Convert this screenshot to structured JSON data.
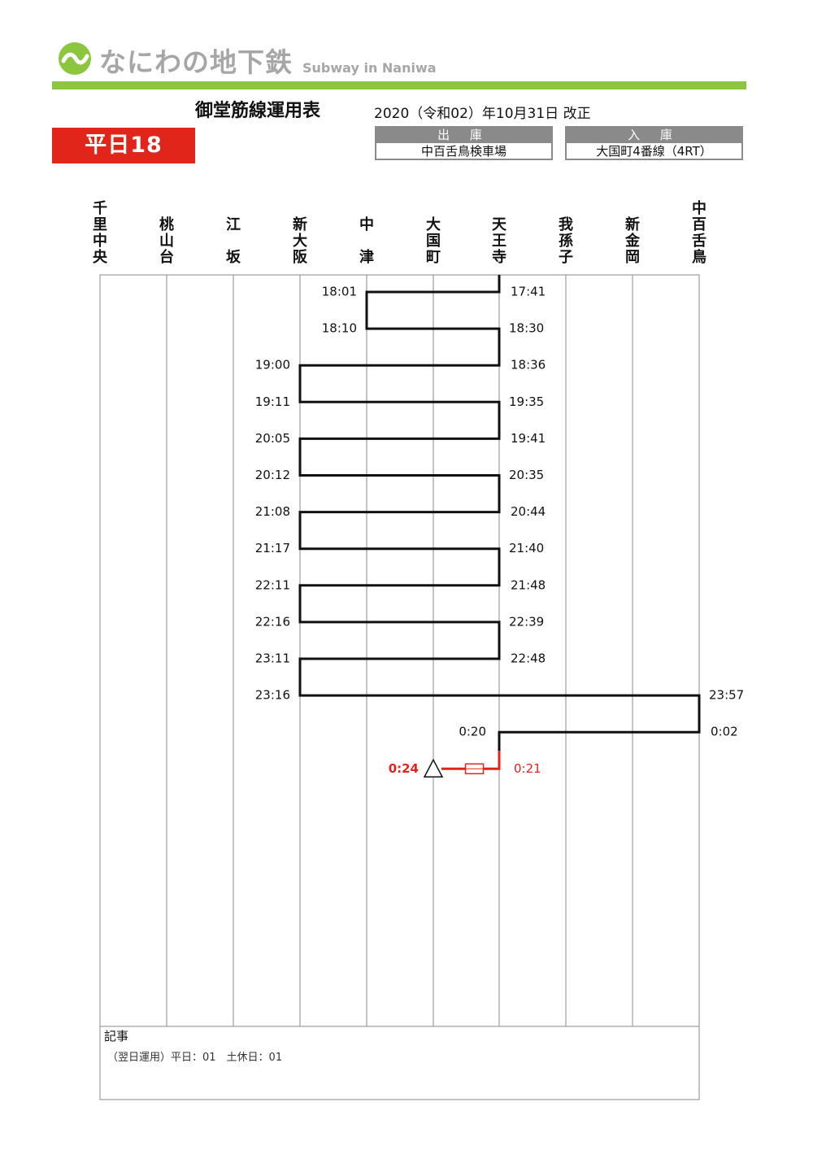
{
  "brand": {
    "name": "なにわの地下鉄",
    "subtitle": "Subway in Naniwa",
    "green": "#8cc63f",
    "logo_icon": "wave-circle-icon"
  },
  "document": {
    "title": "御堂筋線運用表",
    "revision": "2020（令和02）年10月31日 改正"
  },
  "service": {
    "label": "平日18",
    "color": "#e1251b"
  },
  "depot": {
    "out_label": "出 庫",
    "out_value": "中百舌鳥検車場",
    "in_label": "入 庫",
    "in_value": "大国町4番線（4RT）"
  },
  "stations": [
    "千里中央",
    "桃山台",
    "江坂",
    "新大阪",
    "中津",
    "大国町",
    "天王寺",
    "我孫子",
    "新金岡",
    "中百舌鳥"
  ],
  "schedule": {
    "start_station": 6,
    "legs": [
      {
        "from": 6,
        "to": 4,
        "dep": "17:41",
        "arr": "18:01"
      },
      {
        "from": 4,
        "to": 6,
        "dep": "18:10",
        "arr": "18:30"
      },
      {
        "from": 6,
        "to": 3,
        "dep": "18:36",
        "arr": "19:00"
      },
      {
        "from": 3,
        "to": 6,
        "dep": "19:11",
        "arr": "19:35"
      },
      {
        "from": 6,
        "to": 3,
        "dep": "19:41",
        "arr": "20:05"
      },
      {
        "from": 3,
        "to": 6,
        "dep": "20:12",
        "arr": "20:35"
      },
      {
        "from": 6,
        "to": 3,
        "dep": "20:44",
        "arr": "21:08"
      },
      {
        "from": 3,
        "to": 6,
        "dep": "21:17",
        "arr": "21:40"
      },
      {
        "from": 6,
        "to": 3,
        "dep": "21:48",
        "arr": "22:11"
      },
      {
        "from": 3,
        "to": 6,
        "dep": "22:16",
        "arr": "22:39"
      },
      {
        "from": 6,
        "to": 3,
        "dep": "22:48",
        "arr": "23:11"
      },
      {
        "from": 3,
        "to": 9,
        "dep": "23:16",
        "arr": "23:57"
      },
      {
        "from": 9,
        "to": 6,
        "dep": "0:02",
        "arr": "0:20"
      }
    ],
    "stable": {
      "from": 6,
      "to": 5,
      "dep": "0:21",
      "arr": "0:24",
      "color": "#e1251b",
      "end_icon": "triangle-stable-icon",
      "mid_icon": "rectangle-marker-icon"
    }
  },
  "notes": {
    "title": "記事",
    "text": "（翌日運用）平日：01　土休日：01"
  }
}
